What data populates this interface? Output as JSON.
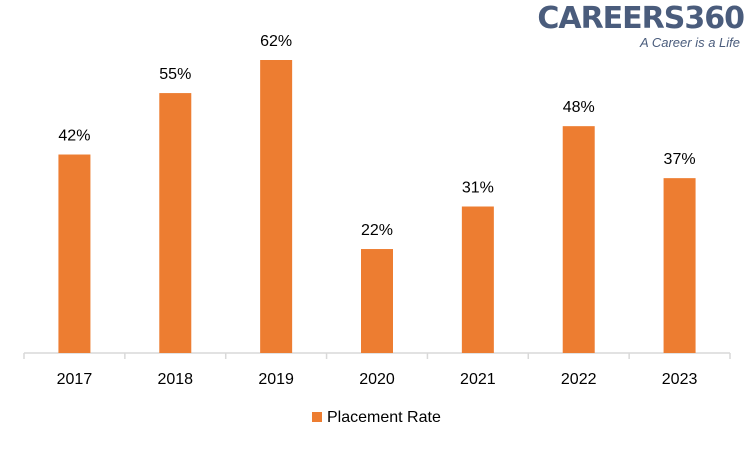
{
  "logo": {
    "name": "CAREERS360",
    "tagline": "A Career is a Life"
  },
  "colors": {
    "bar": "#ED7D31",
    "axis": "#D9D9D9",
    "text": "#000000",
    "logo": "#4a5c7c"
  },
  "chart_data": {
    "type": "bar",
    "categories": [
      "2017",
      "2018",
      "2019",
      "2020",
      "2021",
      "2022",
      "2023"
    ],
    "series": [
      {
        "name": "Placement Rate",
        "values": [
          42,
          55,
          62,
          22,
          31,
          48,
          37
        ]
      }
    ],
    "data_labels": [
      "42%",
      "55%",
      "62%",
      "22%",
      "31%",
      "48%",
      "37%"
    ],
    "ylim": [
      0,
      62
    ],
    "grid": false,
    "legend": "bottom",
    "title": "",
    "xlabel": "",
    "ylabel": ""
  }
}
